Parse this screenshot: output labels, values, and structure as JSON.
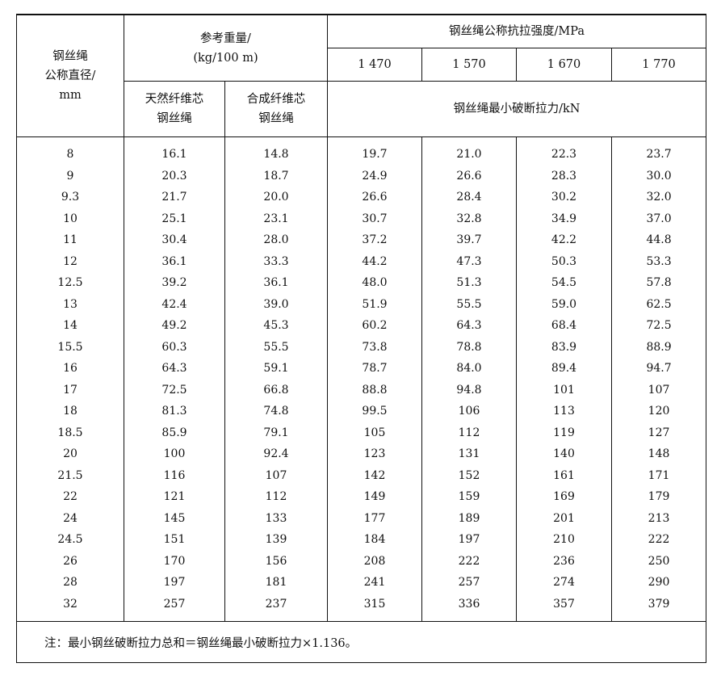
{
  "header": {
    "diameter": [
      "钢丝绳",
      "公称直径/",
      "mm"
    ],
    "weight_group": [
      "参考重量/",
      "(kg/100 m)"
    ],
    "strength_group": "钢丝绳公称抗拉强度/MPa",
    "strengths": [
      "1 470",
      "1 570",
      "1 670",
      "1 770"
    ],
    "natural_core": [
      "天然纤维芯",
      "钢丝绳"
    ],
    "synthetic_core": [
      "合成纤维芯",
      "钢丝绳"
    ],
    "breaking_force": "钢丝绳最小破断拉力/kN"
  },
  "rows": [
    [
      "8",
      "16.1",
      "14.8",
      "19.7",
      "21.0",
      "22.3",
      "23.7"
    ],
    [
      "9",
      "20.3",
      "18.7",
      "24.9",
      "26.6",
      "28.3",
      "30.0"
    ],
    [
      "9.3",
      "21.7",
      "20.0",
      "26.6",
      "28.4",
      "30.2",
      "32.0"
    ],
    [
      "10",
      "25.1",
      "23.1",
      "30.7",
      "32.8",
      "34.9",
      "37.0"
    ],
    [
      "11",
      "30.4",
      "28.0",
      "37.2",
      "39.7",
      "42.2",
      "44.8"
    ],
    [
      "12",
      "36.1",
      "33.3",
      "44.2",
      "47.3",
      "50.3",
      "53.3"
    ],
    [
      "12.5",
      "39.2",
      "36.1",
      "48.0",
      "51.3",
      "54.5",
      "57.8"
    ],
    [
      "13",
      "42.4",
      "39.0",
      "51.9",
      "55.5",
      "59.0",
      "62.5"
    ],
    [
      "14",
      "49.2",
      "45.3",
      "60.2",
      "64.3",
      "68.4",
      "72.5"
    ],
    [
      "15.5",
      "60.3",
      "55.5",
      "73.8",
      "78.8",
      "83.9",
      "88.9"
    ],
    [
      "16",
      "64.3",
      "59.1",
      "78.7",
      "84.0",
      "89.4",
      "94.7"
    ],
    [
      "17",
      "72.5",
      "66.8",
      "88.8",
      "94.8",
      "101",
      "107"
    ],
    [
      "18",
      "81.3",
      "74.8",
      "99.5",
      "106",
      "113",
      "120"
    ],
    [
      "18.5",
      "85.9",
      "79.1",
      "105",
      "112",
      "119",
      "127"
    ],
    [
      "20",
      "100",
      "92.4",
      "123",
      "131",
      "140",
      "148"
    ],
    [
      "21.5",
      "116",
      "107",
      "142",
      "152",
      "161",
      "171"
    ],
    [
      "22",
      "121",
      "112",
      "149",
      "159",
      "169",
      "179"
    ],
    [
      "24",
      "145",
      "133",
      "177",
      "189",
      "201",
      "213"
    ],
    [
      "24.5",
      "151",
      "139",
      "184",
      "197",
      "210",
      "222"
    ],
    [
      "26",
      "170",
      "156",
      "208",
      "222",
      "236",
      "250"
    ],
    [
      "28",
      "197",
      "181",
      "241",
      "257",
      "274",
      "290"
    ],
    [
      "32",
      "257",
      "237",
      "315",
      "336",
      "357",
      "379"
    ]
  ],
  "note": "注：最小钢丝破断拉力总和＝钢丝绳最小破断拉力×1.136。"
}
